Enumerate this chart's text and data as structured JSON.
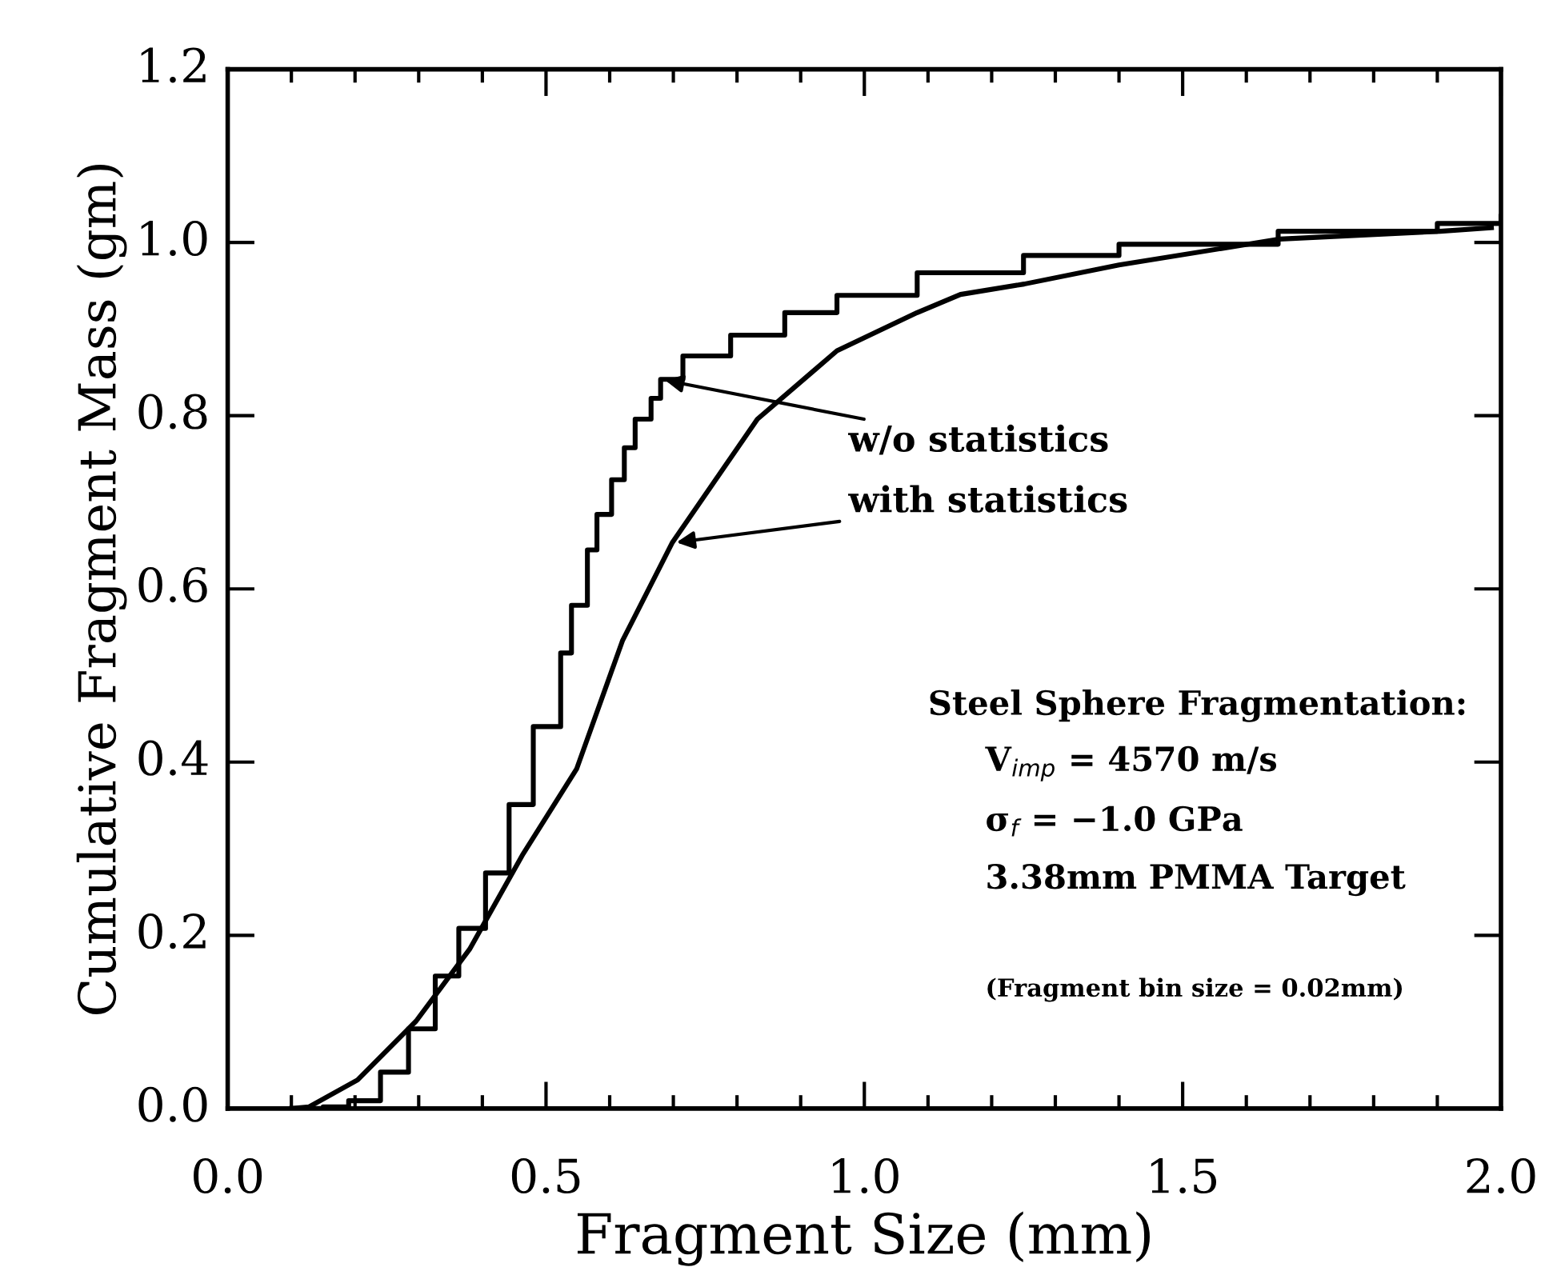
{
  "chart_data": {
    "type": "line",
    "xlabel": "Fragment Size (mm)",
    "ylabel": "Cumulative Fragment Mass (gm)",
    "xlim": [
      0.0,
      2.0
    ],
    "ylim": [
      0.0,
      1.2
    ],
    "xticks": [
      {
        "value": 0,
        "label": "0.0"
      },
      0.5,
      {
        "value": 1,
        "label": "1.0"
      },
      1.5,
      {
        "value": 2,
        "label": "2.0"
      }
    ],
    "yticks": [
      {
        "value": 0,
        "label": "0.0"
      },
      0.2,
      0.4,
      0.6,
      0.8,
      {
        "value": 1,
        "label": "1.0"
      },
      1.2
    ],
    "grid": false,
    "line_style": "solid",
    "marker": "none",
    "series": [
      {
        "type": "step",
        "color": "#000000",
        "x": [
          0.1,
          0.15,
          0.19,
          0.24,
          0.284,
          0.326,
          0.363,
          0.405,
          0.442,
          0.48,
          0.523,
          0.54,
          0.565,
          0.58,
          0.603,
          0.623,
          0.64,
          0.665,
          0.68,
          0.715,
          0.79,
          0.875,
          0.957,
          1.083,
          1.25,
          1.4,
          1.65,
          1.9,
          2.0
        ],
        "values": [
          0.0,
          0.002,
          0.009,
          0.042,
          0.092,
          0.153,
          0.208,
          0.272,
          0.351,
          0.441,
          0.526,
          0.581,
          0.645,
          0.686,
          0.726,
          0.763,
          0.796,
          0.82,
          0.842,
          0.869,
          0.893,
          0.919,
          0.939,
          0.965,
          0.985,
          0.998,
          1.013,
          1.022,
          1.03
        ]
      },
      {
        "color": "#000000",
        "x": [
          0.1,
          0.128,
          0.204,
          0.296,
          0.38,
          0.464,
          0.548,
          0.62,
          0.698,
          0.832,
          0.957,
          1.083,
          1.151,
          1.251,
          1.4,
          1.653,
          1.905,
          1.985
        ],
        "values": [
          0.0,
          0.002,
          0.033,
          0.101,
          0.184,
          0.294,
          0.392,
          0.54,
          0.653,
          0.796,
          0.875,
          0.919,
          0.94,
          0.952,
          0.974,
          1.004,
          1.013,
          1.017
        ]
      }
    ],
    "annotations": [
      {
        "text": "w/o statistics",
        "x": 0.68,
        "y": 0.842
      },
      {
        "text": "with statistics",
        "x": 0.698,
        "y": 0.653
      },
      "Steel Sphere Fragmentation:",
      "V$_{imp}$ = 4570 m/s",
      "σ$_{f}$ = −1.0 GPa",
      "3.38mm PMMA Target",
      "(Fragment bin size = 0.02mm)"
    ]
  }
}
